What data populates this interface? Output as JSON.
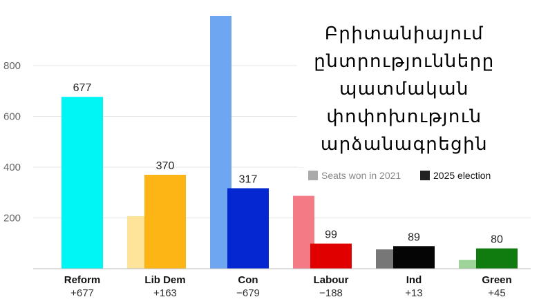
{
  "chart_data": {
    "type": "bar",
    "title_lines": [
      "Բրիտանիայում",
      "ընտրությունները",
      "պատմական",
      "փոփոխություն",
      "արձանագրեցին"
    ],
    "categories": [
      "Reform",
      "Lib Dem",
      "Con",
      "Labour",
      "Ind",
      "Green"
    ],
    "changes": [
      "+677",
      "+163",
      "−679",
      "−188",
      "+13",
      "+45"
    ],
    "series": [
      {
        "name": "Seats won in 2021",
        "values": [
          0,
          207,
          996,
          287,
          76,
          35
        ],
        "colors": [
          "#9ff7f7",
          "#fde49a",
          "#6fa6f2",
          "#f47a86",
          "#777777",
          "#9ed49a"
        ]
      },
      {
        "name": "2025 election",
        "values": [
          677,
          370,
          317,
          99,
          89,
          80
        ],
        "labels": [
          "677",
          "370",
          "317",
          "99",
          "89",
          "80"
        ],
        "colors": [
          "#00f5f5",
          "#fdb515",
          "#0427d2",
          "#e00000",
          "#050505",
          "#107c10"
        ]
      }
    ],
    "y_ticks": [
      "200",
      "400",
      "600",
      "800"
    ],
    "ylim": [
      0,
      1000
    ],
    "grid": true,
    "legend_position": "top-right",
    "legend_colors": [
      "#aaaaaa",
      "#222222"
    ],
    "legend_text_colors": [
      "#888888",
      "#111111"
    ]
  }
}
